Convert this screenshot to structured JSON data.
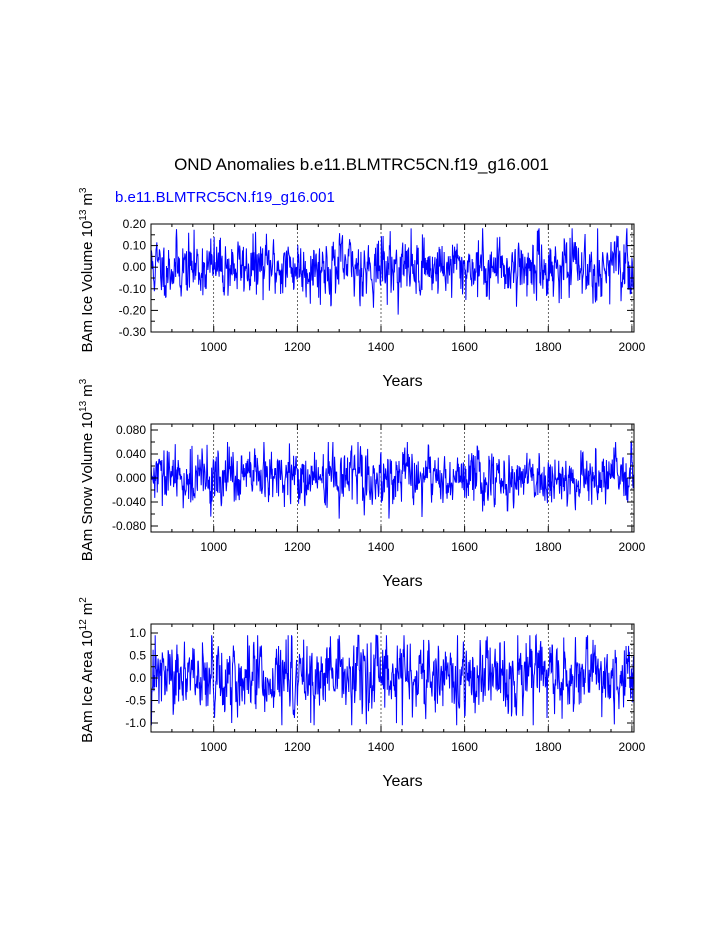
{
  "figure": {
    "title": "OND Anomalies b.e11.BLMTRC5CN.f19_g16.001",
    "subtitle": "b.e11.BLMTRC5CN.f19_g16.001",
    "line_color": "#0000ff"
  },
  "chart_data": [
    {
      "type": "line",
      "ylabel": "BAm Ice Volume 10",
      "ylabel_exp": "13",
      "ylabel_unit": "m",
      "ylabel_unit_exp": "3",
      "xlabel": "Years",
      "xlim": [
        850,
        2005
      ],
      "ylim": [
        -0.3,
        0.2
      ],
      "yticks": [
        -0.3,
        -0.2,
        -0.1,
        0.0,
        0.1,
        0.2
      ],
      "ytick_labels": [
        "-0.30",
        "-0.20",
        "-0.10",
        "0.00",
        "0.10",
        "0.20"
      ],
      "xticks": [
        1000,
        1200,
        1400,
        1600,
        1800,
        2000
      ],
      "xtick_labels": [
        "1000",
        "1200",
        "1400",
        "1600",
        "1800",
        "2000"
      ],
      "series": [
        {
          "name": "b.e11.BLMTRC5CN.f19_g16.001",
          "x_start": 850,
          "x_end": 2005,
          "amplitude": 0.065,
          "min": -0.24,
          "max": 0.18,
          "seed": 11
        }
      ]
    },
    {
      "type": "line",
      "ylabel": "BAm Snow Volume 10",
      "ylabel_exp": "13",
      "ylabel_unit": "m",
      "ylabel_unit_exp": "3",
      "xlabel": "Years",
      "xlim": [
        850,
        2005
      ],
      "ylim": [
        -0.09,
        0.09
      ],
      "yticks": [
        -0.08,
        -0.04,
        0.0,
        0.04,
        0.08
      ],
      "ytick_labels": [
        "-0.080",
        "-0.040",
        "0.000",
        "0.040",
        "0.080"
      ],
      "xticks": [
        1000,
        1200,
        1400,
        1600,
        1800,
        2000
      ],
      "xtick_labels": [
        "1000",
        "1200",
        "1400",
        "1600",
        "1800",
        "2000"
      ],
      "series": [
        {
          "name": "b.e11.BLMTRC5CN.f19_g16.001",
          "x_start": 850,
          "x_end": 2005,
          "amplitude": 0.022,
          "min": -0.075,
          "max": 0.06,
          "seed": 29
        }
      ]
    },
    {
      "type": "line",
      "ylabel": "BAm Ice Area 10",
      "ylabel_exp": "12",
      "ylabel_unit": "m",
      "ylabel_unit_exp": "2",
      "xlabel": "Years",
      "xlim": [
        850,
        2005
      ],
      "ylim": [
        -1.2,
        1.2
      ],
      "yticks": [
        -1.0,
        -0.5,
        0.0,
        0.5,
        1.0
      ],
      "ytick_labels": [
        "-1.0",
        "-0.5",
        "0.0",
        "0.5",
        "1.0"
      ],
      "xticks": [
        1000,
        1200,
        1400,
        1600,
        1800,
        2000
      ],
      "xtick_labels": [
        "1000",
        "1200",
        "1400",
        "1600",
        "1800",
        "2000"
      ],
      "series": [
        {
          "name": "b.e11.BLMTRC5CN.f19_g16.001",
          "x_start": 850,
          "x_end": 2005,
          "amplitude": 0.38,
          "min": -1.05,
          "max": 0.95,
          "seed": 47
        }
      ]
    }
  ]
}
